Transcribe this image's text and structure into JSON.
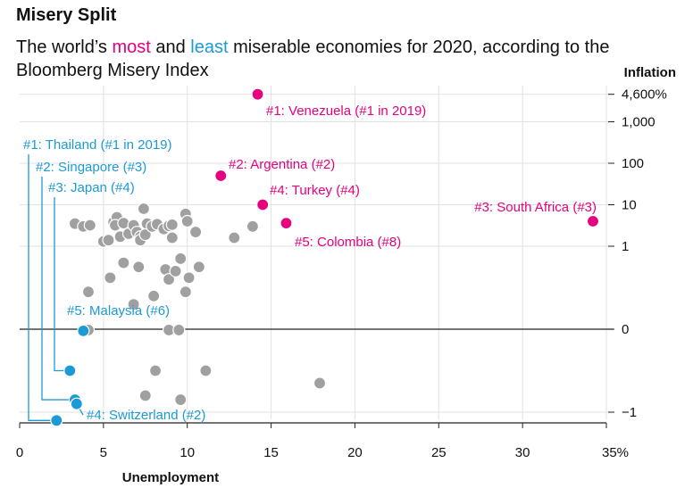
{
  "header": {
    "title": "Misery Split",
    "subtitle_pre": "The world’s ",
    "subtitle_most": "most",
    "subtitle_mid": " and ",
    "subtitle_least": "least",
    "subtitle_post": " miserable economies for 2020, according to the Bloomberg Misery Index"
  },
  "colors": {
    "most": "#e6007e",
    "least": "#1b9ad6",
    "other": "#a0a0a0",
    "grid": "#e2e2e2"
  },
  "chart_data": {
    "type": "scatter",
    "xlabel": "Unemployment",
    "ylabel": "Inflation",
    "xlim": [
      0,
      35
    ],
    "x_ticks": [
      0,
      5,
      10,
      15,
      20,
      25,
      30,
      35
    ],
    "x_tick_labels": [
      "0",
      "5",
      "10",
      "15",
      "20",
      "25",
      "30",
      "35%"
    ],
    "y_scale": "symlog",
    "y_ticks": [
      4600,
      1000,
      100,
      10,
      1,
      0,
      -1
    ],
    "y_tick_labels": [
      "4,600%",
      "1,000",
      "100",
      "10",
      "1",
      "0",
      "−1"
    ],
    "grid": true,
    "series": [
      {
        "category": "most",
        "points": [
          {
            "label": "#1: Venezuela (#1 in 2019)",
            "x": 14.2,
            "y": 4600
          },
          {
            "label": "#2: Argentina (#2)",
            "x": 12.0,
            "y": 50
          },
          {
            "label": "#3: South Africa (#3)",
            "x": 34.2,
            "y": 4
          },
          {
            "label": "#4: Turkey (#4)",
            "x": 14.5,
            "y": 10
          },
          {
            "label": "#5: Colombia (#8)",
            "x": 15.9,
            "y": 3.6
          }
        ]
      },
      {
        "category": "least",
        "points": [
          {
            "label": "#1: Thailand (#1 in 2019)",
            "x": 2.2,
            "y": -1.1
          },
          {
            "label": "#2: Singapore (#3)",
            "x": 3.3,
            "y": -0.85
          },
          {
            "label": "#3: Japan (#4)",
            "x": 3.0,
            "y": -0.5
          },
          {
            "label": "#4: Switzerland (#2)",
            "x": 3.4,
            "y": -0.9
          },
          {
            "label": "#5: Malaysia (#6)",
            "x": 3.8,
            "y": -0.02
          }
        ]
      },
      {
        "category": "other",
        "points": [
          {
            "x": 3.3,
            "y": 3.5
          },
          {
            "x": 3.8,
            "y": 3.0
          },
          {
            "x": 4.2,
            "y": 3.2
          },
          {
            "x": 4.1,
            "y": 0.45
          },
          {
            "x": 5.0,
            "y": 1.3
          },
          {
            "x": 5.3,
            "y": 1.4
          },
          {
            "x": 5.6,
            "y": 3.8
          },
          {
            "x": 5.8,
            "y": 5.0
          },
          {
            "x": 5.7,
            "y": 3.2
          },
          {
            "x": 6.0,
            "y": 1.7
          },
          {
            "x": 6.2,
            "y": 3.6
          },
          {
            "x": 6.2,
            "y": 0.8
          },
          {
            "x": 6.5,
            "y": 2.0
          },
          {
            "x": 6.8,
            "y": 3.2
          },
          {
            "x": 6.8,
            "y": 0.3
          },
          {
            "x": 5.4,
            "y": 0.62
          },
          {
            "x": 7.0,
            "y": 2.2
          },
          {
            "x": 7.1,
            "y": 0.75
          },
          {
            "x": 7.2,
            "y": 1.7
          },
          {
            "x": 7.2,
            "y": 1.4
          },
          {
            "x": 7.4,
            "y": 8.0
          },
          {
            "x": 7.6,
            "y": 3.5
          },
          {
            "x": 7.5,
            "y": 1.9
          },
          {
            "x": 7.9,
            "y": 3.0
          },
          {
            "x": 8.0,
            "y": 0.4
          },
          {
            "x": 8.2,
            "y": 3.4
          },
          {
            "x": 8.6,
            "y": 2.6
          },
          {
            "x": 8.7,
            "y": 0.72
          },
          {
            "x": 8.9,
            "y": 3.1
          },
          {
            "x": 8.9,
            "y": 0.6
          },
          {
            "x": 9.1,
            "y": 3.3
          },
          {
            "x": 9.1,
            "y": 1.6
          },
          {
            "x": 9.3,
            "y": 0.7
          },
          {
            "x": 9.6,
            "y": 0.85
          },
          {
            "x": 9.9,
            "y": 6.0
          },
          {
            "x": 10.0,
            "y": 4.0
          },
          {
            "x": 10.1,
            "y": 0.62
          },
          {
            "x": 9.9,
            "y": 0.45
          },
          {
            "x": 10.5,
            "y": 2.2
          },
          {
            "x": 10.7,
            "y": 0.75
          },
          {
            "x": 12.8,
            "y": 1.6
          },
          {
            "x": 13.9,
            "y": 3.0
          },
          {
            "x": 4.1,
            "y": -0.01
          },
          {
            "x": 8.9,
            "y": -0.01
          },
          {
            "x": 9.5,
            "y": -0.01
          },
          {
            "x": 8.1,
            "y": -0.5
          },
          {
            "x": 11.1,
            "y": -0.5
          },
          {
            "x": 7.5,
            "y": -0.8
          },
          {
            "x": 9.6,
            "y": -0.85
          },
          {
            "x": 17.9,
            "y": -0.65
          }
        ]
      }
    ]
  }
}
